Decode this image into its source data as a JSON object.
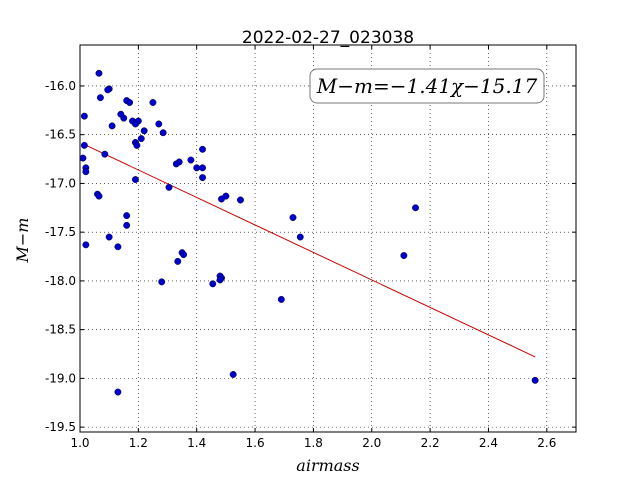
{
  "chart_data": {
    "type": "scatter",
    "title": "2022-02-27_023038",
    "xlabel": "airmass",
    "ylabel": "M−m",
    "xlim": [
      1.0,
      2.7
    ],
    "ylim": [
      -19.55,
      -15.58
    ],
    "ylim_note": "y axis inverted (less negative at top)",
    "xticks": [
      "1.0",
      "1.2",
      "1.4",
      "1.6",
      "1.8",
      "2.0",
      "2.2",
      "2.4",
      "2.6"
    ],
    "yticks": [
      "-16.0",
      "-16.5",
      "-17.0",
      "-17.5",
      "-18.0",
      "-18.5",
      "-19.0",
      "-19.5"
    ],
    "grid": true,
    "annotation": "M−m=−1.41χ−15.17",
    "point_color": "#0000cc",
    "line_color": "#cc0000",
    "fit": {
      "slope": -1.41,
      "intercept": -15.17,
      "x_range": [
        1.02,
        2.56
      ]
    },
    "series": [
      {
        "points": [
          [
            1.065,
            -15.87
          ],
          [
            1.1,
            -16.03
          ],
          [
            1.095,
            -16.04
          ],
          [
            1.07,
            -16.12
          ],
          [
            1.16,
            -16.15
          ],
          [
            1.17,
            -16.17
          ],
          [
            1.25,
            -16.17
          ],
          [
            1.015,
            -16.31
          ],
          [
            1.14,
            -16.29
          ],
          [
            1.15,
            -16.33
          ],
          [
            1.18,
            -16.36
          ],
          [
            1.2,
            -16.36
          ],
          [
            1.19,
            -16.39
          ],
          [
            1.27,
            -16.39
          ],
          [
            1.11,
            -16.41
          ],
          [
            1.22,
            -16.46
          ],
          [
            1.285,
            -16.48
          ],
          [
            1.21,
            -16.54
          ],
          [
            1.19,
            -16.58
          ],
          [
            1.195,
            -16.61
          ],
          [
            1.015,
            -16.61
          ],
          [
            1.42,
            -16.65
          ],
          [
            1.085,
            -16.7
          ],
          [
            1.01,
            -16.74
          ],
          [
            1.38,
            -16.76
          ],
          [
            1.34,
            -16.78
          ],
          [
            1.33,
            -16.8
          ],
          [
            1.4,
            -16.84
          ],
          [
            1.42,
            -16.84
          ],
          [
            1.02,
            -16.84
          ],
          [
            1.02,
            -16.88
          ],
          [
            1.42,
            -16.94
          ],
          [
            1.19,
            -16.96
          ],
          [
            1.305,
            -17.04
          ],
          [
            1.06,
            -17.11
          ],
          [
            1.065,
            -17.13
          ],
          [
            1.5,
            -17.13
          ],
          [
            1.485,
            -17.16
          ],
          [
            1.55,
            -17.17
          ],
          [
            2.15,
            -17.25
          ],
          [
            1.16,
            -17.33
          ],
          [
            1.73,
            -17.35
          ],
          [
            1.16,
            -17.43
          ],
          [
            1.1,
            -17.55
          ],
          [
            1.755,
            -17.55
          ],
          [
            1.02,
            -17.63
          ],
          [
            1.13,
            -17.65
          ],
          [
            1.35,
            -17.71
          ],
          [
            1.355,
            -17.73
          ],
          [
            2.11,
            -17.74
          ],
          [
            1.335,
            -17.8
          ],
          [
            1.48,
            -17.95
          ],
          [
            1.485,
            -17.97
          ],
          [
            1.48,
            -17.99
          ],
          [
            1.28,
            -18.01
          ],
          [
            1.455,
            -18.03
          ],
          [
            1.69,
            -18.19
          ],
          [
            1.525,
            -18.96
          ],
          [
            2.56,
            -19.02
          ],
          [
            1.13,
            -19.14
          ]
        ]
      }
    ]
  }
}
